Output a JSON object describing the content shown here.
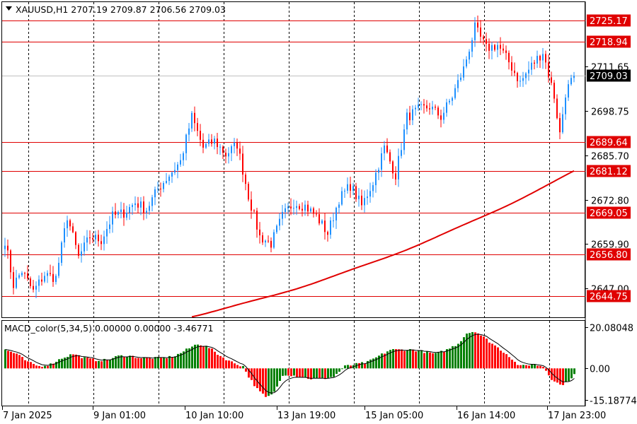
{
  "chart_header": {
    "symbol_line": "XAUUSD,H1  2707.19 2709.87 2706.56 2709.03"
  },
  "indicator_header": {
    "label": "MACD_color(5,34,5) 0.00000 0.00000 -3.46771"
  },
  "colors": {
    "bull": "#1e90ff",
    "bear": "#ff0000",
    "hline": "#e00000",
    "ma": "#e00000",
    "hist_up": "#008000",
    "hist_down": "#ff0000",
    "signal": "#000000",
    "grid": "#000000",
    "price_tag": "#000000"
  },
  "chart_data": {
    "type": "candlestick",
    "price_axis": {
      "ticks": [
        "2711.65",
        "2698.75",
        "2685.70",
        "2672.80",
        "2659.90",
        "2647.00"
      ],
      "range": [
        2638.5,
        2730.5
      ]
    },
    "current_price": "2709.03",
    "horizontal_levels": [
      "2725.17",
      "2718.94",
      "2689.64",
      "2681.12",
      "2669.05",
      "2656.80",
      "2644.75"
    ],
    "time_labels": [
      "7 Jan 2025",
      "9 Jan 01:00",
      "10 Jan 10:00",
      "13 Jan 19:00",
      "15 Jan 05:00",
      "16 Jan 14:00",
      "17 Jan 23:00"
    ],
    "price_anchors": [
      [
        0,
        2661
      ],
      [
        3,
        2648
      ],
      [
        6,
        2652
      ],
      [
        10,
        2646
      ],
      [
        14,
        2651
      ],
      [
        18,
        2650
      ],
      [
        22,
        2668
      ],
      [
        26,
        2656
      ],
      [
        30,
        2662
      ],
      [
        34,
        2661
      ],
      [
        38,
        2668
      ],
      [
        42,
        2669
      ],
      [
        46,
        2672
      ],
      [
        50,
        2670
      ],
      [
        54,
        2676
      ],
      [
        58,
        2680
      ],
      [
        62,
        2684
      ],
      [
        66,
        2697
      ],
      [
        70,
        2688
      ],
      [
        74,
        2690
      ],
      [
        78,
        2686
      ],
      [
        82,
        2689
      ],
      [
        86,
        2674
      ],
      [
        90,
        2662
      ],
      [
        94,
        2660
      ],
      [
        98,
        2668
      ],
      [
        102,
        2672
      ],
      [
        106,
        2671
      ],
      [
        110,
        2668
      ],
      [
        114,
        2663
      ],
      [
        118,
        2673
      ],
      [
        122,
        2677
      ],
      [
        126,
        2671
      ],
      [
        130,
        2678
      ],
      [
        134,
        2688
      ],
      [
        138,
        2680
      ],
      [
        142,
        2697
      ],
      [
        146,
        2699
      ],
      [
        150,
        2700
      ],
      [
        154,
        2697
      ],
      [
        158,
        2703
      ],
      [
        162,
        2711
      ],
      [
        166,
        2723
      ],
      [
        170,
        2717
      ],
      [
        174,
        2718
      ],
      [
        178,
        2713
      ],
      [
        182,
        2707
      ],
      [
        186,
        2712
      ],
      [
        190,
        2716
      ],
      [
        194,
        2703
      ],
      [
        196,
        2692
      ],
      [
        198,
        2704
      ],
      [
        201,
        2709
      ]
    ],
    "moving_average": {
      "start": [
        2637.0,
        2639.5,
        2641.5
      ],
      "end": 2681.12
    },
    "macd": {
      "axis_ticks": [
        "20.08048",
        "0.00",
        "-15.18774"
      ],
      "range": [
        -18.0,
        23.0
      ],
      "histogram_anchors": [
        [
          0,
          9
        ],
        [
          4,
          7
        ],
        [
          8,
          3
        ],
        [
          12,
          1
        ],
        [
          16,
          2
        ],
        [
          20,
          5
        ],
        [
          24,
          7
        ],
        [
          28,
          5
        ],
        [
          32,
          4
        ],
        [
          36,
          4
        ],
        [
          40,
          6
        ],
        [
          44,
          6
        ],
        [
          48,
          5
        ],
        [
          52,
          5
        ],
        [
          56,
          5
        ],
        [
          60,
          6
        ],
        [
          64,
          9
        ],
        [
          68,
          12
        ],
        [
          72,
          10
        ],
        [
          76,
          6
        ],
        [
          80,
          3
        ],
        [
          84,
          1
        ],
        [
          86,
          -4
        ],
        [
          89,
          -10
        ],
        [
          92,
          -14
        ],
        [
          94,
          -13
        ],
        [
          96,
          -9
        ],
        [
          98,
          -3
        ],
        [
          100,
          -3
        ],
        [
          104,
          -4
        ],
        [
          108,
          -5
        ],
        [
          112,
          -5
        ],
        [
          116,
          -4
        ],
        [
          120,
          1
        ],
        [
          124,
          2
        ],
        [
          128,
          3
        ],
        [
          132,
          6
        ],
        [
          136,
          9
        ],
        [
          140,
          9
        ],
        [
          144,
          9
        ],
        [
          148,
          8
        ],
        [
          152,
          7
        ],
        [
          156,
          9
        ],
        [
          160,
          12
        ],
        [
          163,
          17
        ],
        [
          166,
          18
        ],
        [
          170,
          14
        ],
        [
          174,
          10
        ],
        [
          178,
          6
        ],
        [
          180,
          3
        ],
        [
          182,
          1
        ],
        [
          186,
          2
        ],
        [
          190,
          1
        ],
        [
          193,
          -5
        ],
        [
          196,
          -8
        ],
        [
          198,
          -7
        ],
        [
          201,
          -3
        ]
      ]
    }
  }
}
